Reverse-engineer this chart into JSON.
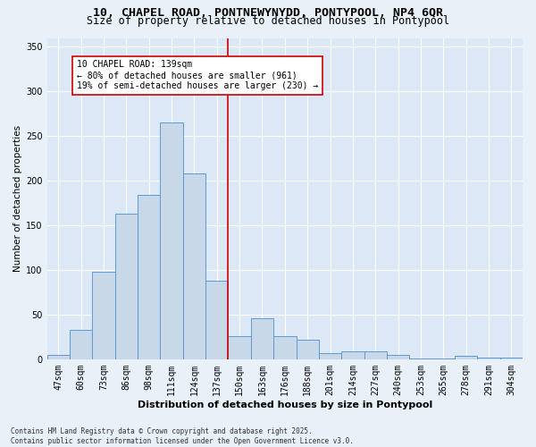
{
  "title_line1": "10, CHAPEL ROAD, PONTNEWYNYDD, PONTYPOOL, NP4 6QR",
  "title_line2": "Size of property relative to detached houses in Pontypool",
  "xlabel": "Distribution of detached houses by size in Pontypool",
  "ylabel": "Number of detached properties",
  "categories": [
    "47sqm",
    "60sqm",
    "73sqm",
    "86sqm",
    "98sqm",
    "111sqm",
    "124sqm",
    "137sqm",
    "150sqm",
    "163sqm",
    "176sqm",
    "188sqm",
    "201sqm",
    "214sqm",
    "227sqm",
    "240sqm",
    "253sqm",
    "265sqm",
    "278sqm",
    "291sqm",
    "304sqm"
  ],
  "values": [
    5,
    33,
    98,
    163,
    184,
    265,
    208,
    88,
    26,
    46,
    26,
    22,
    7,
    9,
    9,
    5,
    1,
    1,
    4,
    2,
    2
  ],
  "bar_color": "#c8d8e8",
  "bar_edge_color": "#5b9bd5",
  "background_color": "#e8f0f8",
  "plot_bg_color": "#dce8f5",
  "vline_color": "#cc0000",
  "annotation_text": "10 CHAPEL ROAD: 139sqm\n← 80% of detached houses are smaller (961)\n19% of semi-detached houses are larger (230) →",
  "annotation_box_color": "#ffffff",
  "annotation_box_edge": "#cc0000",
  "ylim": [
    0,
    360
  ],
  "yticks": [
    0,
    50,
    100,
    150,
    200,
    250,
    300,
    350
  ],
  "footer_text": "Contains HM Land Registry data © Crown copyright and database right 2025.\nContains public sector information licensed under the Open Government Licence v3.0.",
  "title_fontsize": 9.5,
  "subtitle_fontsize": 8.5,
  "axis_label_fontsize": 8,
  "tick_fontsize": 7,
  "annotation_fontsize": 7,
  "footer_fontsize": 5.5,
  "ylabel_fontsize": 7.5
}
